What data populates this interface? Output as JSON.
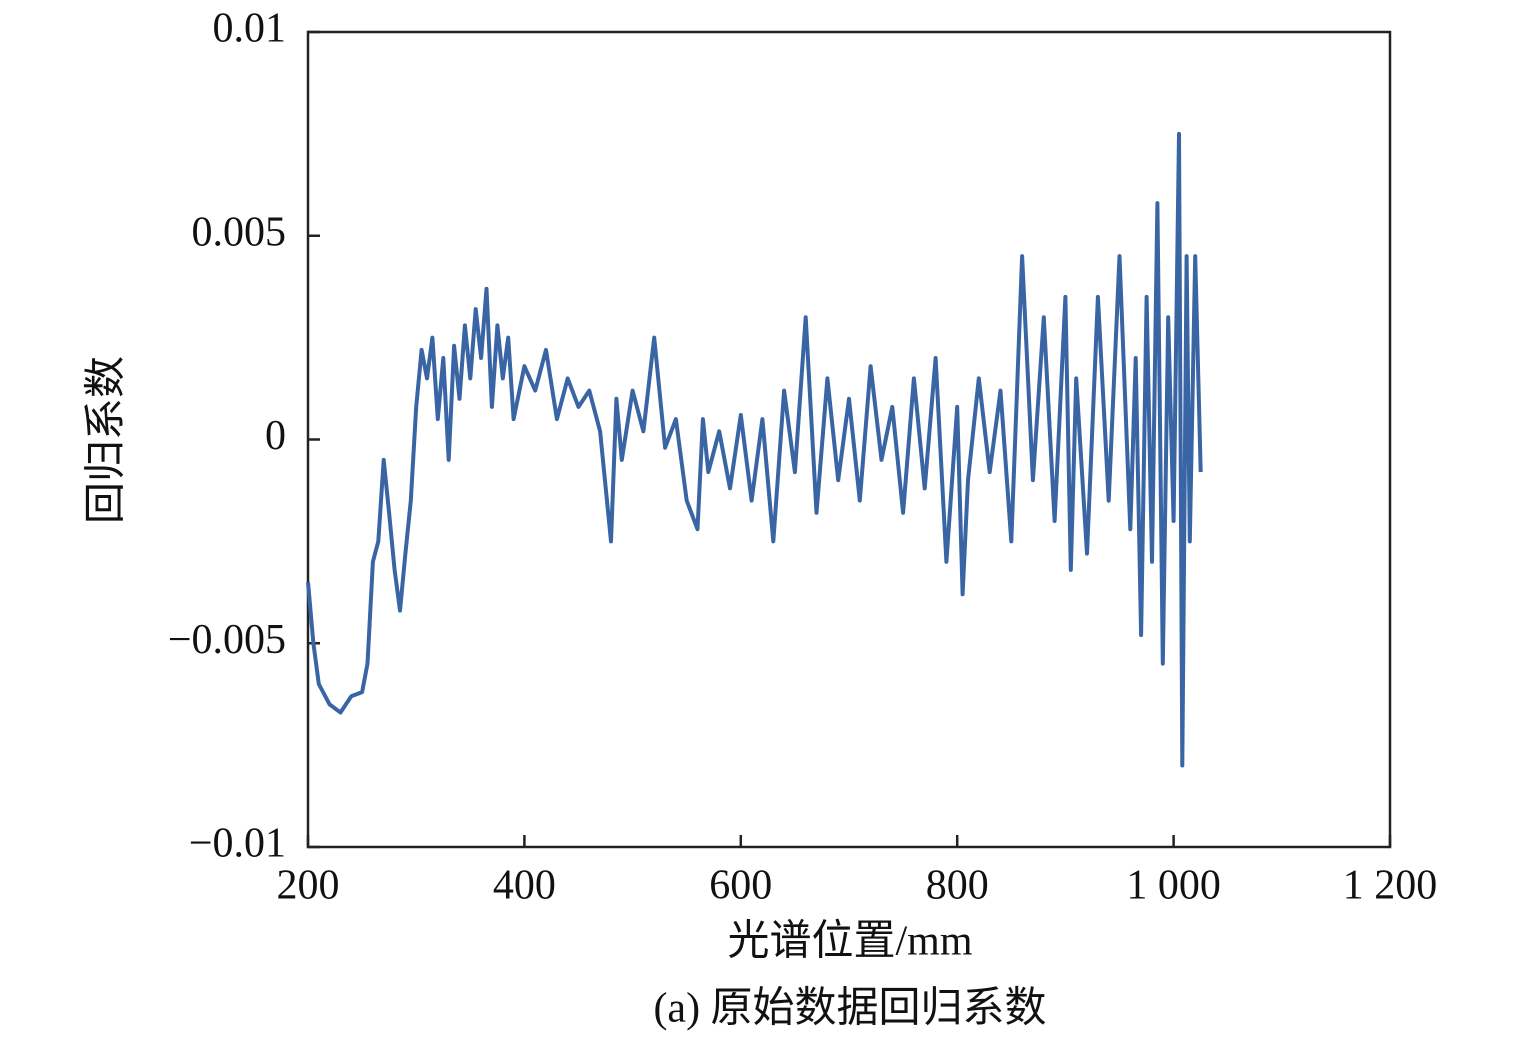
{
  "chart_data": {
    "type": "line",
    "ylabel": "回归系数",
    "xlabel": "光谱位置/mm",
    "caption": "(a) 原始数据回归系数",
    "xlim": [
      200,
      1200
    ],
    "xticks": [
      200,
      400,
      600,
      800,
      {
        "value": 1000,
        "label": "1 000"
      },
      {
        "value": 1200,
        "label": "1 200"
      }
    ],
    "ylim": [
      -0.01,
      0.01
    ],
    "yticks": [
      {
        "value": -0.01,
        "label": "−0.01"
      },
      {
        "value": -0.005,
        "label": "−0.005"
      },
      0,
      0.005,
      0.01
    ],
    "series": [
      {
        "color": "#3a65a5",
        "x": [
          200,
          205,
          210,
          220,
          230,
          240,
          250,
          255,
          260,
          265,
          270,
          275,
          280,
          285,
          290,
          295,
          300,
          305,
          310,
          315,
          320,
          325,
          330,
          335,
          340,
          345,
          350,
          355,
          360,
          365,
          370,
          375,
          380,
          385,
          390,
          400,
          410,
          420,
          430,
          440,
          450,
          460,
          470,
          480,
          485,
          490,
          500,
          510,
          520,
          530,
          540,
          550,
          560,
          565,
          570,
          580,
          590,
          600,
          610,
          620,
          630,
          640,
          650,
          660,
          670,
          680,
          690,
          700,
          710,
          720,
          730,
          740,
          750,
          760,
          770,
          780,
          790,
          800,
          805,
          810,
          820,
          830,
          840,
          850,
          860,
          870,
          880,
          890,
          900,
          905,
          910,
          920,
          930,
          940,
          950,
          960,
          965,
          970,
          975,
          980,
          985,
          990,
          995,
          1000,
          1005,
          1008,
          1012,
          1015,
          1020,
          1025
        ],
        "values": [
          -0.0035,
          -0.005,
          -0.006,
          -0.0065,
          -0.0067,
          -0.0063,
          -0.0062,
          -0.0055,
          -0.003,
          -0.0025,
          -0.0005,
          -0.0018,
          -0.0032,
          -0.0042,
          -0.0028,
          -0.0015,
          0.0008,
          0.0022,
          0.0015,
          0.0025,
          0.0005,
          0.002,
          -0.0005,
          0.0023,
          0.001,
          0.0028,
          0.0015,
          0.0032,
          0.002,
          0.0037,
          0.0008,
          0.0028,
          0.0015,
          0.0025,
          0.0005,
          0.0018,
          0.0012,
          0.0022,
          0.0005,
          0.0015,
          0.0008,
          0.0012,
          0.0002,
          -0.0025,
          0.001,
          -0.0005,
          0.0012,
          0.0002,
          0.0025,
          -0.0002,
          0.0005,
          -0.0015,
          -0.0022,
          0.0005,
          -0.0008,
          0.0002,
          -0.0012,
          0.0006,
          -0.0015,
          0.0005,
          -0.0025,
          0.0012,
          -0.0008,
          0.003,
          -0.0018,
          0.0015,
          -0.001,
          0.001,
          -0.0015,
          0.0018,
          -0.0005,
          0.0008,
          -0.0018,
          0.0015,
          -0.0012,
          0.002,
          -0.003,
          0.0008,
          -0.0038,
          -0.001,
          0.0015,
          -0.0008,
          0.0012,
          -0.0025,
          0.0045,
          -0.001,
          0.003,
          -0.002,
          0.0035,
          -0.0032,
          0.0015,
          -0.0028,
          0.0035,
          -0.0015,
          0.0045,
          -0.0022,
          0.002,
          -0.0048,
          0.0035,
          -0.003,
          0.0058,
          -0.0055,
          0.003,
          -0.002,
          0.0075,
          -0.008,
          0.0045,
          -0.0025,
          0.0045,
          -0.0008
        ]
      }
    ]
  }
}
